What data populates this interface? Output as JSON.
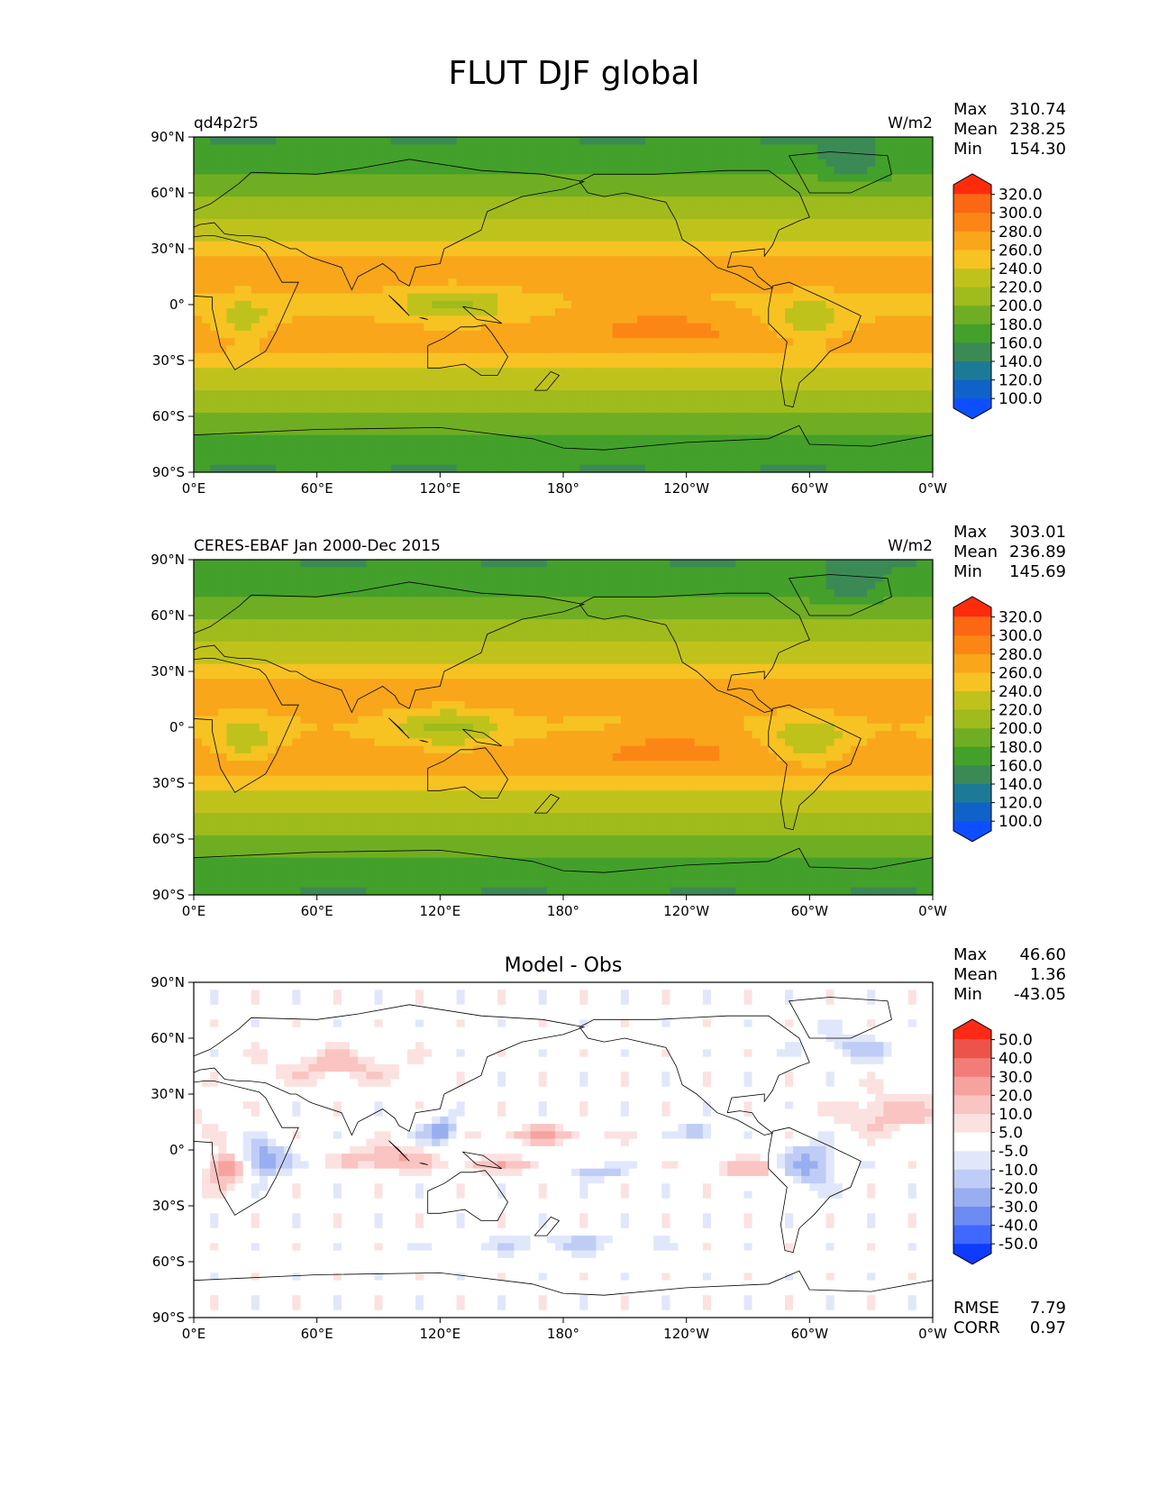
{
  "title": "FLUT DJF global",
  "colors": {
    "main_levels": [
      "#0d4fff",
      "#0f63c8",
      "#1d7a96",
      "#3b8a55",
      "#43a02a",
      "#6fae22",
      "#9fbb1c",
      "#c0c21c",
      "#f6c322",
      "#f9a61a",
      "#fb8615",
      "#fc6811",
      "#fe2c0b"
    ],
    "diff_levels": [
      "#0d3bff",
      "#3e68ff",
      "#6c8cf4",
      "#98aef0",
      "#bfcdf6",
      "#e1e7fb",
      "#ffffff",
      "#fbe2e0",
      "#f9c4c1",
      "#f6a3a0",
      "#f27d78",
      "#ec5449",
      "#fe2a16"
    ],
    "coast": "#000000"
  },
  "panels": [
    {
      "id": "model",
      "left_label": "qd4p2r5",
      "right_label": "W/m2",
      "center_title": "",
      "stats": [
        {
          "k": "Max",
          "v": "310.74"
        },
        {
          "k": "Mean",
          "v": "238.25"
        },
        {
          "k": "Min",
          "v": "154.30"
        }
      ],
      "extra_stats": [],
      "colorbar_labels": [
        "320.0",
        "300.0",
        "280.0",
        "260.0",
        "240.0",
        "220.0",
        "200.0",
        "180.0",
        "160.0",
        "140.0",
        "120.0",
        "100.0"
      ]
    },
    {
      "id": "obs",
      "left_label": "CERES-EBAF Jan 2000-Dec 2015",
      "right_label": "W/m2",
      "center_title": "",
      "stats": [
        {
          "k": "Max",
          "v": "303.01"
        },
        {
          "k": "Mean",
          "v": "236.89"
        },
        {
          "k": "Min",
          "v": "145.69"
        }
      ],
      "extra_stats": [],
      "colorbar_labels": [
        "320.0",
        "300.0",
        "280.0",
        "260.0",
        "240.0",
        "220.0",
        "200.0",
        "180.0",
        "160.0",
        "140.0",
        "120.0",
        "100.0"
      ]
    },
    {
      "id": "diff",
      "left_label": "",
      "right_label": "",
      "center_title": "Model - Obs",
      "stats": [
        {
          "k": "Max",
          "v": "46.60"
        },
        {
          "k": "Mean",
          "v": "1.36"
        },
        {
          "k": "Min",
          "v": "-43.05"
        }
      ],
      "extra_stats": [
        {
          "k": "RMSE",
          "v": "7.79"
        },
        {
          "k": "CORR",
          "v": "0.97"
        }
      ],
      "colorbar_labels": [
        "50.0",
        "40.0",
        "30.0",
        "20.0",
        "10.0",
        "5.0",
        "-5.0",
        "-10.0",
        "-20.0",
        "-30.0",
        "-40.0",
        "-50.0"
      ]
    }
  ],
  "axes": {
    "x_ticks": [
      "0°E",
      "60°E",
      "120°E",
      "180°",
      "120°W",
      "60°W",
      "0°W"
    ],
    "y_ticks": [
      "90°N",
      "60°N",
      "30°N",
      "0°",
      "30°S",
      "60°S",
      "90°S"
    ]
  },
  "chart_data": [
    {
      "type": "heatmap",
      "title": "qd4p2r5",
      "units": "W/m2",
      "x_range": [
        0,
        360
      ],
      "y_range": [
        -90,
        90
      ],
      "levels": [
        100,
        120,
        140,
        160,
        180,
        200,
        220,
        240,
        260,
        280,
        300,
        320
      ],
      "stats": {
        "max": 310.74,
        "mean": 238.25,
        "min": 154.3
      }
    },
    {
      "type": "heatmap",
      "title": "CERES-EBAF Jan 2000-Dec 2015",
      "units": "W/m2",
      "x_range": [
        0,
        360
      ],
      "y_range": [
        -90,
        90
      ],
      "levels": [
        100,
        120,
        140,
        160,
        180,
        200,
        220,
        240,
        260,
        280,
        300,
        320
      ],
      "stats": {
        "max": 303.01,
        "mean": 236.89,
        "min": 145.69
      }
    },
    {
      "type": "heatmap",
      "title": "Model - Obs",
      "x_range": [
        0,
        360
      ],
      "y_range": [
        -90,
        90
      ],
      "levels": [
        -50,
        -40,
        -30,
        -20,
        -10,
        -5,
        5,
        10,
        20,
        30,
        40,
        50
      ],
      "stats": {
        "max": 46.6,
        "mean": 1.36,
        "min": -43.05,
        "rmse": 7.79,
        "corr": 0.97
      }
    }
  ]
}
